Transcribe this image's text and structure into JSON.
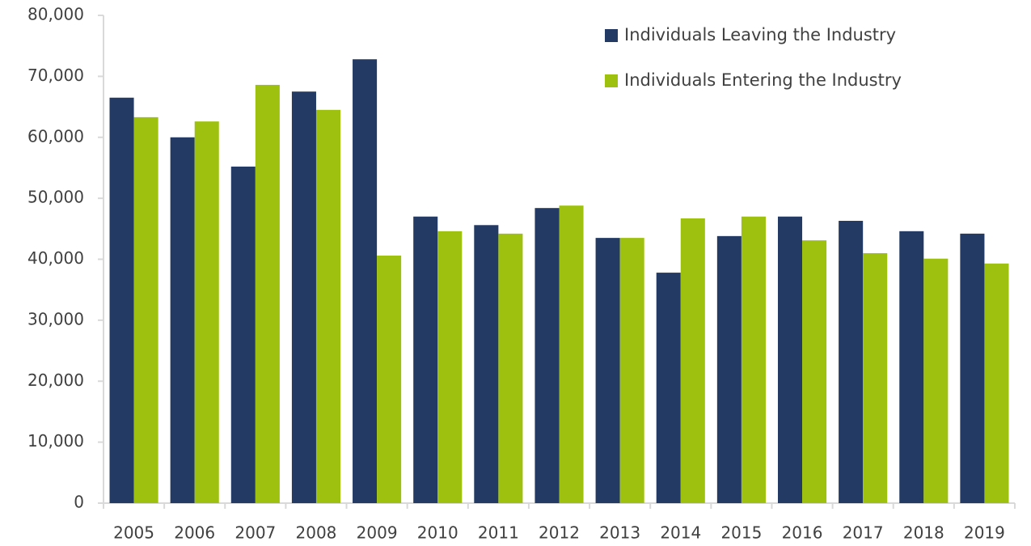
{
  "chart_data": {
    "type": "bar",
    "categories": [
      "2005",
      "2006",
      "2007",
      "2008",
      "2009",
      "2010",
      "2011",
      "2012",
      "2013",
      "2014",
      "2015",
      "2016",
      "2017",
      "2018",
      "2019"
    ],
    "series": [
      {
        "name": "Individuals Leaving the Industry",
        "color": "#223a64",
        "values": [
          66500,
          60000,
          55200,
          67500,
          72800,
          47000,
          45600,
          48400,
          43500,
          37800,
          43800,
          47000,
          46300,
          44600,
          44200
        ]
      },
      {
        "name": "Individuals Entering the Industry",
        "color": "#9dc10e",
        "values": [
          63300,
          62600,
          68600,
          64500,
          40600,
          44600,
          44200,
          48800,
          43500,
          46700,
          47000,
          43100,
          41000,
          40100,
          39300
        ]
      }
    ],
    "ylim": [
      0,
      80000
    ],
    "yticks": [
      {
        "value": 0,
        "label": "0"
      },
      {
        "value": 10000,
        "label": "10,000"
      },
      {
        "value": 20000,
        "label": "20,000"
      },
      {
        "value": 30000,
        "label": "30,000"
      },
      {
        "value": 40000,
        "label": "40,000"
      },
      {
        "value": 50000,
        "label": "50,000"
      },
      {
        "value": 60000,
        "label": "60,000"
      },
      {
        "value": 70000,
        "label": "70,000"
      },
      {
        "value": 80000,
        "label": "80,000"
      }
    ],
    "grid": false,
    "legend": "top-right"
  }
}
